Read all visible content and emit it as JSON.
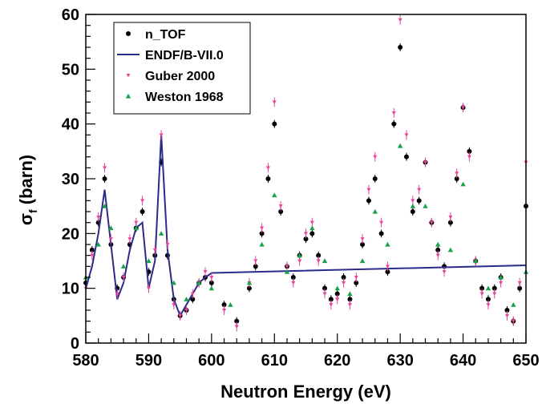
{
  "chart_data": {
    "type": "scatter",
    "xlabel": "Neutron Energy (eV)",
    "ylabel": "σf (barn)",
    "ylabel_main": "σ",
    "ylabel_sub": "f",
    "ylabel_rest": " (barn)",
    "xlim": [
      580,
      650
    ],
    "ylim": [
      0,
      60
    ],
    "xticks": [
      580,
      590,
      600,
      610,
      620,
      630,
      640,
      650
    ],
    "yticks": [
      0,
      10,
      20,
      30,
      40,
      50,
      60
    ],
    "grid": false,
    "legend_position": "top-left",
    "series": [
      {
        "name": "n_TOF",
        "marker": "circle",
        "color": "#000000",
        "x": [
          580,
          581,
          582,
          583,
          584,
          585,
          586,
          587,
          588,
          589,
          590,
          591,
          592,
          593,
          594,
          595,
          596,
          597,
          598,
          599,
          600,
          602,
          604,
          606,
          607,
          608,
          609,
          610,
          611,
          612,
          613,
          614,
          615,
          616,
          617,
          618,
          619,
          620,
          621,
          622,
          623,
          624,
          625,
          626,
          627,
          628,
          629,
          630,
          631,
          632,
          633,
          634,
          635,
          636,
          637,
          638,
          639,
          640,
          641,
          642,
          643,
          644,
          645,
          646,
          647,
          648,
          649,
          650
        ],
        "y": [
          11,
          17,
          22,
          30,
          18,
          10,
          12,
          18,
          21,
          24,
          13,
          16,
          33,
          16,
          8,
          5,
          6,
          8,
          11,
          12,
          11,
          7,
          4,
          10,
          14,
          20,
          30,
          40,
          24,
          14,
          12,
          16,
          19,
          20,
          16,
          10,
          8,
          9,
          12,
          8,
          11,
          18,
          26,
          30,
          20,
          13,
          40,
          54,
          34,
          24,
          26,
          33,
          22,
          17,
          14,
          22,
          30,
          43,
          35,
          15,
          10,
          8,
          10,
          12,
          6,
          4,
          10,
          25
        ]
      },
      {
        "name": "ENDF/B-VII.0",
        "marker": "line",
        "color": "#2b2b8a",
        "x": [
          580,
          581,
          582,
          583,
          584,
          585,
          586,
          587,
          588,
          589,
          590,
          591,
          592,
          593,
          594,
          595,
          596,
          597,
          598,
          599,
          600,
          650
        ],
        "y": [
          10,
          14,
          20,
          28,
          18,
          8,
          11,
          17,
          21,
          22,
          10,
          15,
          38,
          17,
          8,
          5,
          7,
          9,
          11,
          12,
          12.8,
          14.2
        ]
      },
      {
        "name": "Guber 2000",
        "marker": "triangle-down",
        "color": "#e8449b",
        "x": [
          580,
          581,
          582,
          583,
          584,
          585,
          586,
          587,
          588,
          589,
          590,
          591,
          592,
          593,
          594,
          595,
          596,
          597,
          598,
          599,
          600,
          602,
          604,
          606,
          607,
          608,
          609,
          610,
          611,
          612,
          613,
          614,
          615,
          616,
          617,
          618,
          619,
          620,
          621,
          622,
          623,
          624,
          625,
          626,
          627,
          628,
          629,
          630,
          631,
          632,
          633,
          634,
          635,
          636,
          637,
          638,
          639,
          640,
          641,
          642,
          643,
          644,
          645,
          646,
          647,
          648,
          649,
          650
        ],
        "y": [
          10,
          16,
          23,
          32,
          19,
          9,
          12,
          19,
          22,
          26,
          10,
          17,
          38,
          18,
          7,
          5,
          6,
          9,
          11,
          13,
          12,
          6,
          3,
          11,
          15,
          21,
          32,
          44,
          25,
          14,
          11,
          15,
          20,
          22,
          15,
          9,
          7,
          8,
          11,
          7,
          12,
          19,
          28,
          34,
          22,
          14,
          42,
          59,
          38,
          26,
          28,
          33,
          22,
          16,
          13,
          23,
          31,
          43,
          34,
          15,
          9,
          7,
          9,
          11,
          5,
          4,
          11,
          33
        ]
      },
      {
        "name": "Weston 1968",
        "marker": "triangle-up",
        "color": "#18a34a",
        "x": [
          580,
          582,
          583,
          584,
          586,
          588,
          590,
          592,
          594,
          596,
          598,
          600,
          603,
          606,
          608,
          610,
          612,
          614,
          616,
          618,
          620,
          622,
          624,
          626,
          628,
          630,
          632,
          634,
          636,
          638,
          640,
          642,
          644,
          646,
          648,
          650
        ],
        "y": [
          12,
          18,
          25,
          21,
          14,
          21,
          15,
          20,
          11,
          8,
          11,
          10,
          7,
          11,
          18,
          27,
          13,
          16,
          21,
          15,
          10,
          9,
          15,
          24,
          18,
          36,
          25,
          25,
          18,
          17,
          29,
          15,
          10,
          12,
          7,
          13
        ]
      }
    ]
  }
}
